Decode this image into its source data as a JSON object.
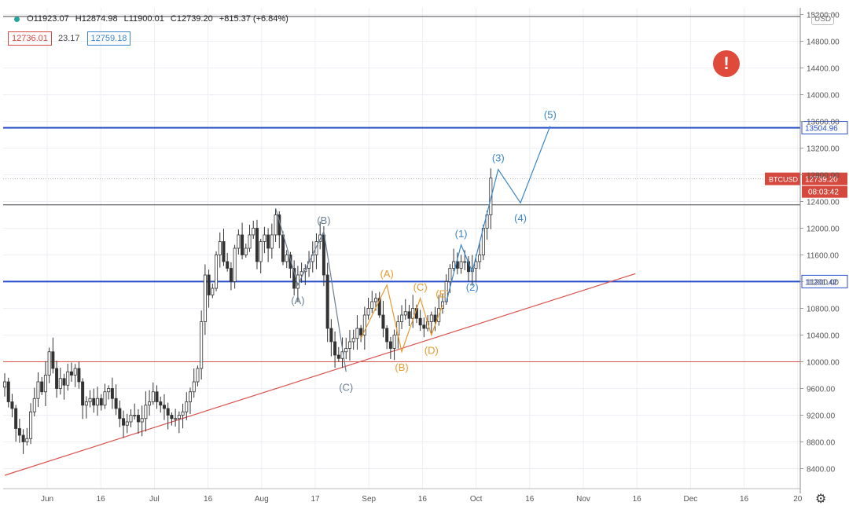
{
  "header": {
    "open": "O11923.07",
    "high": "H12874.98",
    "low": "L11900.01",
    "close": "C12739.20",
    "change": "+815.37 (+6.84%)",
    "bid": "12736.01",
    "spread": "23.17",
    "ask": "12759.18",
    "currency": "USD"
  },
  "icons": {
    "alert": "exclamation-alert-icon",
    "settings": "gear-icon"
  },
  "alert_glyph": "!",
  "settings_glyph": "⚙",
  "colors": {
    "bull": "#26a69a",
    "bear": "#333333",
    "candle": "#333333",
    "hline_blue": "#2a4fc8",
    "hline_red": "#d9534f",
    "trend": "#d9534f",
    "wave_blue": "#3a86c8",
    "wave_orange": "#e89a2c",
    "label_red": "#d5483e"
  },
  "chart_data": {
    "type": "candlestick",
    "symbol": "BTCUSD",
    "ylim": [
      8100,
      15300
    ],
    "y_ticks": [
      "8400.00",
      "8800.00",
      "9200.00",
      "9600.00",
      "10000.00",
      "10400.00",
      "10800.00",
      "11200.00",
      "11600.00",
      "12000.00",
      "12400.00",
      "12800.00",
      "13200.00",
      "13600.00",
      "14000.00",
      "14400.00",
      "14800.00",
      "15200.00"
    ],
    "x_ticks": [
      "Jun",
      "16",
      "Jul",
      "16",
      "Aug",
      "17",
      "Sep",
      "16",
      "Oct",
      "16",
      "Nov",
      "16",
      "Dec",
      "16",
      "20"
    ],
    "closes": [
      9700,
      9400,
      9300,
      9000,
      8900,
      8800,
      8850,
      9250,
      9450,
      9700,
      9550,
      9800,
      10150,
      9900,
      9600,
      9750,
      9650,
      9850,
      9800,
      9900,
      9700,
      9350,
      9400,
      9450,
      9350,
      9450,
      9350,
      9550,
      9600,
      9450,
      9300,
      9150,
      9050,
      9100,
      9200,
      9200,
      9100,
      9150,
      9350,
      9400,
      9550,
      9400,
      9350,
      9300,
      9200,
      9150,
      9150,
      9200,
      9250,
      9400,
      9550,
      9700,
      9900,
      10600,
      11300,
      11000,
      11100,
      11600,
      11800,
      11500,
      11400,
      11200,
      11700,
      11900,
      11600,
      11700,
      11900,
      12000,
      11500,
      11800,
      11900,
      11700,
      11900,
      12200,
      11900,
      11500,
      11600,
      11400,
      11100,
      11300,
      11350,
      11400,
      11500,
      11600,
      11800,
      11900,
      11300,
      10500,
      10300,
      10100,
      10050,
      10150,
      10200,
      10300,
      10350,
      10500,
      10400,
      10700,
      10800,
      10900,
      10950,
      10700,
      10500,
      10300,
      10200,
      10400,
      10600,
      10700,
      10750,
      10650,
      10800,
      10650,
      10550,
      10500,
      10600,
      10700,
      10600,
      10800,
      10900,
      11200,
      11400,
      11500,
      11400,
      11500,
      11500,
      11350,
      11400,
      11500,
      11600,
      12000,
      12200,
      12750
    ],
    "hlines": [
      {
        "value": 13504.96,
        "label": "13504.96",
        "color": "blue"
      },
      {
        "value": 11201.42,
        "label": "11201.42",
        "color": "blue"
      },
      {
        "value": 12350,
        "label": "",
        "color": "dark"
      },
      {
        "value": 10000,
        "label": "",
        "color": "red"
      },
      {
        "value": 15170,
        "label": "",
        "color": "dark"
      }
    ],
    "last_price": {
      "symbol": "BTCUSD",
      "value": 12739.2,
      "label": "12739.20",
      "countdown": "08:03:42"
    },
    "waves_primary": [
      {
        "label": "(A)",
        "i": 79,
        "price": 11150,
        "below": true
      },
      {
        "label": "(B)",
        "i": 86,
        "price": 11950,
        "below": false
      },
      {
        "label": "(C)",
        "i": 92,
        "price": 9850,
        "below": true
      }
    ],
    "waves_minor": [
      {
        "label": "(A)",
        "i": 103,
        "price": 11150,
        "below": false
      },
      {
        "label": "(B)",
        "i": 107,
        "price": 10150,
        "below": true
      },
      {
        "label": "(C)",
        "i": 112,
        "price": 10950,
        "below": false
      },
      {
        "label": "(D)",
        "i": 115,
        "price": 10400,
        "below": true
      },
      {
        "label": "(E)",
        "i": 118,
        "price": 10850,
        "below": false
      }
    ],
    "waves_impulse": [
      {
        "label": "(1)",
        "i": 123,
        "price": 11750,
        "below": false
      },
      {
        "label": "(2)",
        "i": 126,
        "price": 11350,
        "below": true
      },
      {
        "label": "(3)",
        "i": 133,
        "price": 12880,
        "below": false
      },
      {
        "label": "(4)",
        "i": 139,
        "price": 12380,
        "below": true
      },
      {
        "label": "(5)",
        "i": 147,
        "price": 13530,
        "below": false
      }
    ],
    "trendline": {
      "i0": 0,
      "p0": 8300,
      "i1": 170,
      "p1": 11320
    }
  }
}
